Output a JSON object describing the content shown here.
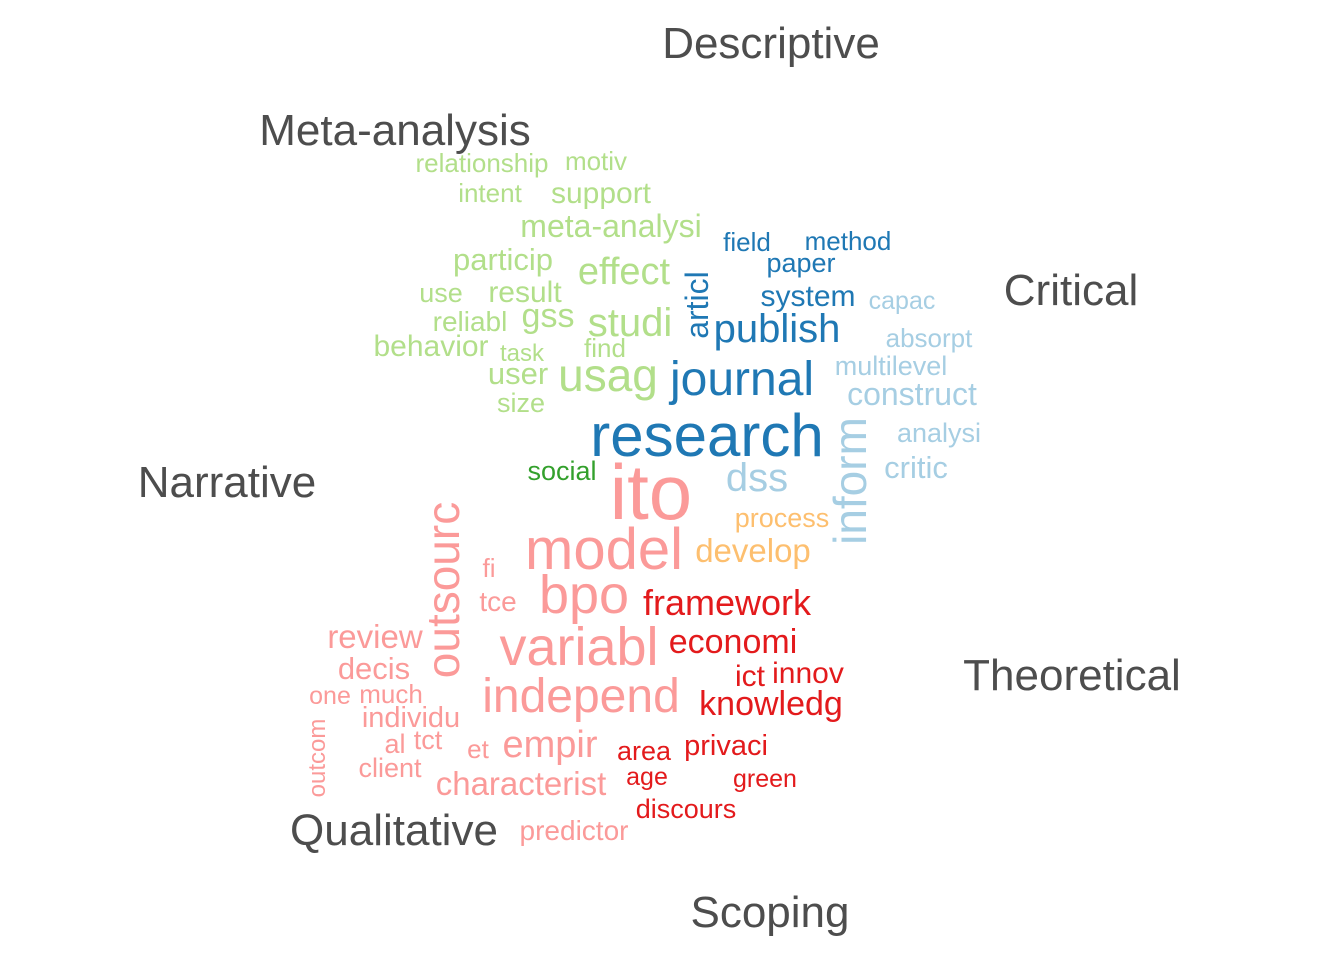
{
  "chart_data": {
    "type": "comparison-wordcloud",
    "categories": [
      {
        "name": "Descriptive"
      },
      {
        "name": "Meta-analysis"
      },
      {
        "name": "Critical"
      },
      {
        "name": "Narrative"
      },
      {
        "name": "Theoretical"
      },
      {
        "name": "Qualitative"
      },
      {
        "name": "Scoping"
      }
    ],
    "colors": {
      "label": "#4d4d4d",
      "Meta-analysis": "#b2df8a",
      "Descriptive": "#1f78b4",
      "Critical": "#a6cee3",
      "Narrative": "#33a02c",
      "Scoping": "#fdbf6f",
      "Theoretical": "#e31a1c",
      "Qualitative": "#fb9a99"
    },
    "words": [
      {
        "text": "relationship",
        "group": "Meta-analysis"
      },
      {
        "text": "motiv",
        "group": "Meta-analysis"
      },
      {
        "text": "intent",
        "group": "Meta-analysis"
      },
      {
        "text": "support",
        "group": "Meta-analysis"
      },
      {
        "text": "meta-analysi",
        "group": "Meta-analysis"
      },
      {
        "text": "particip",
        "group": "Meta-analysis"
      },
      {
        "text": "effect",
        "group": "Meta-analysis"
      },
      {
        "text": "use",
        "group": "Meta-analysis"
      },
      {
        "text": "result",
        "group": "Meta-analysis"
      },
      {
        "text": "reliabl",
        "group": "Meta-analysis"
      },
      {
        "text": "gss",
        "group": "Meta-analysis"
      },
      {
        "text": "studi",
        "group": "Meta-analysis"
      },
      {
        "text": "behavior",
        "group": "Meta-analysis"
      },
      {
        "text": "task",
        "group": "Meta-analysis"
      },
      {
        "text": "find",
        "group": "Meta-analysis"
      },
      {
        "text": "user",
        "group": "Meta-analysis"
      },
      {
        "text": "usag",
        "group": "Meta-analysis"
      },
      {
        "text": "size",
        "group": "Meta-analysis"
      },
      {
        "text": "field",
        "group": "Descriptive"
      },
      {
        "text": "method",
        "group": "Descriptive"
      },
      {
        "text": "paper",
        "group": "Descriptive"
      },
      {
        "text": "articl",
        "group": "Descriptive"
      },
      {
        "text": "system",
        "group": "Descriptive"
      },
      {
        "text": "publish",
        "group": "Descriptive"
      },
      {
        "text": "journal",
        "group": "Descriptive"
      },
      {
        "text": "research",
        "group": "Descriptive"
      },
      {
        "text": "capac",
        "group": "Critical"
      },
      {
        "text": "absorpt",
        "group": "Critical"
      },
      {
        "text": "multilevel",
        "group": "Critical"
      },
      {
        "text": "construct",
        "group": "Critical"
      },
      {
        "text": "analysi",
        "group": "Critical"
      },
      {
        "text": "inform",
        "group": "Critical"
      },
      {
        "text": "critic",
        "group": "Critical"
      },
      {
        "text": "dss",
        "group": "Critical"
      },
      {
        "text": "social",
        "group": "Narrative"
      },
      {
        "text": "process",
        "group": "Scoping"
      },
      {
        "text": "develop",
        "group": "Scoping"
      },
      {
        "text": "framework",
        "group": "Theoretical"
      },
      {
        "text": "economi",
        "group": "Theoretical"
      },
      {
        "text": "ict",
        "group": "Theoretical"
      },
      {
        "text": "innov",
        "group": "Theoretical"
      },
      {
        "text": "knowledg",
        "group": "Theoretical"
      },
      {
        "text": "area",
        "group": "Theoretical"
      },
      {
        "text": "privaci",
        "group": "Theoretical"
      },
      {
        "text": "age",
        "group": "Theoretical"
      },
      {
        "text": "green",
        "group": "Theoretical"
      },
      {
        "text": "discours",
        "group": "Theoretical"
      },
      {
        "text": "ito",
        "group": "Qualitative"
      },
      {
        "text": "model",
        "group": "Qualitative"
      },
      {
        "text": "outsourc",
        "group": "Qualitative"
      },
      {
        "text": "fi",
        "group": "Qualitative"
      },
      {
        "text": "bpo",
        "group": "Qualitative"
      },
      {
        "text": "tce",
        "group": "Qualitative"
      },
      {
        "text": "review",
        "group": "Qualitative"
      },
      {
        "text": "variabl",
        "group": "Qualitative"
      },
      {
        "text": "decis",
        "group": "Qualitative"
      },
      {
        "text": "one",
        "group": "Qualitative"
      },
      {
        "text": "much",
        "group": "Qualitative"
      },
      {
        "text": "independ",
        "group": "Qualitative"
      },
      {
        "text": "individu",
        "group": "Qualitative"
      },
      {
        "text": "outcom",
        "group": "Qualitative"
      },
      {
        "text": "al",
        "group": "Qualitative"
      },
      {
        "text": "tct",
        "group": "Qualitative"
      },
      {
        "text": "et",
        "group": "Qualitative"
      },
      {
        "text": "empir",
        "group": "Qualitative"
      },
      {
        "text": "client",
        "group": "Qualitative"
      },
      {
        "text": "characterist",
        "group": "Qualitative"
      },
      {
        "text": "predictor",
        "group": "Qualitative"
      }
    ]
  }
}
